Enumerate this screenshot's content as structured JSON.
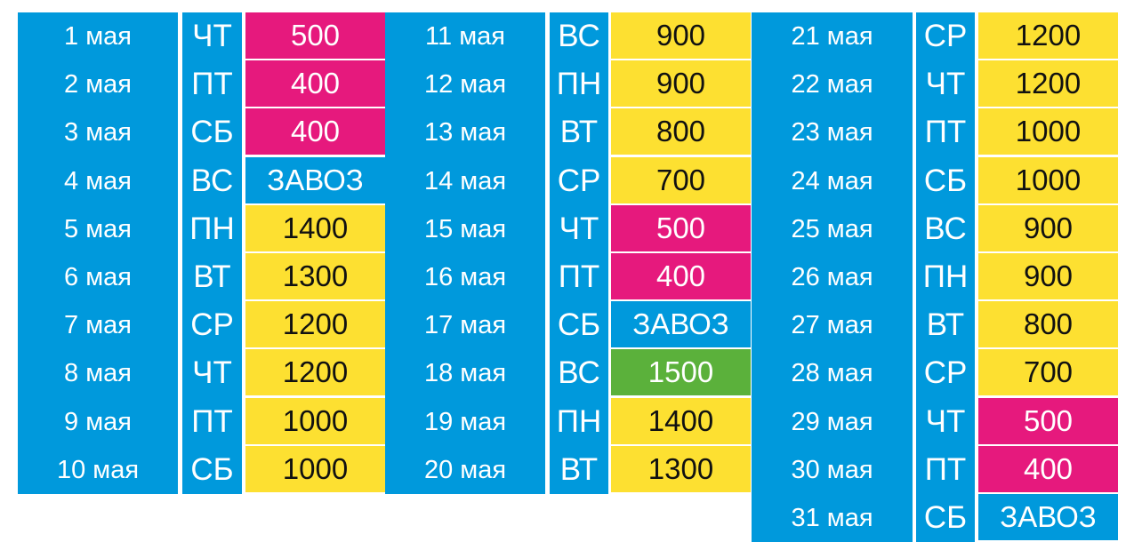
{
  "colors": {
    "blue": "#0099dc",
    "pink": "#e6197d",
    "yellow": "#fde031",
    "green": "#5bb13b"
  },
  "groups": [
    {
      "rows": [
        {
          "date": "1 мая",
          "dow": "ЧТ",
          "value": "500",
          "color": "pink"
        },
        {
          "date": "2 мая",
          "dow": "ПТ",
          "value": "400",
          "color": "pink"
        },
        {
          "date": "3 мая",
          "dow": "СБ",
          "value": "400",
          "color": "pink"
        },
        {
          "date": "4 мая",
          "dow": "ВС",
          "value": "ЗАВОЗ",
          "color": "blue"
        },
        {
          "date": "5 мая",
          "dow": "ПН",
          "value": "1400",
          "color": "yellow"
        },
        {
          "date": "6 мая",
          "dow": "ВТ",
          "value": "1300",
          "color": "yellow"
        },
        {
          "date": "7 мая",
          "dow": "СР",
          "value": "1200",
          "color": "yellow"
        },
        {
          "date": "8 мая",
          "dow": "ЧТ",
          "value": "1200",
          "color": "yellow"
        },
        {
          "date": "9 мая",
          "dow": "ПТ",
          "value": "1000",
          "color": "yellow"
        },
        {
          "date": "10 мая",
          "dow": "СБ",
          "value": "1000",
          "color": "yellow"
        }
      ]
    },
    {
      "rows": [
        {
          "date": "11 мая",
          "dow": "ВС",
          "value": "900",
          "color": "yellow"
        },
        {
          "date": "12 мая",
          "dow": "ПН",
          "value": "900",
          "color": "yellow"
        },
        {
          "date": "13 мая",
          "dow": "ВТ",
          "value": "800",
          "color": "yellow"
        },
        {
          "date": "14 мая",
          "dow": "СР",
          "value": "700",
          "color": "yellow"
        },
        {
          "date": "15 мая",
          "dow": "ЧТ",
          "value": "500",
          "color": "pink"
        },
        {
          "date": "16 мая",
          "dow": "ПТ",
          "value": "400",
          "color": "pink"
        },
        {
          "date": "17 мая",
          "dow": "СБ",
          "value": "ЗАВОЗ",
          "color": "blue"
        },
        {
          "date": "18 мая",
          "dow": "ВС",
          "value": "1500",
          "color": "green"
        },
        {
          "date": "19 мая",
          "dow": "ПН",
          "value": "1400",
          "color": "yellow"
        },
        {
          "date": "20 мая",
          "dow": "ВТ",
          "value": "1300",
          "color": "yellow"
        }
      ]
    },
    {
      "rows": [
        {
          "date": "21 мая",
          "dow": "СР",
          "value": "1200",
          "color": "yellow"
        },
        {
          "date": "22 мая",
          "dow": "ЧТ",
          "value": "1200",
          "color": "yellow"
        },
        {
          "date": "23 мая",
          "dow": "ПТ",
          "value": "1000",
          "color": "yellow"
        },
        {
          "date": "24 мая",
          "dow": "СБ",
          "value": "1000",
          "color": "yellow"
        },
        {
          "date": "25 мая",
          "dow": "ВС",
          "value": "900",
          "color": "yellow"
        },
        {
          "date": "26 мая",
          "dow": "ПН",
          "value": "900",
          "color": "yellow"
        },
        {
          "date": "27 мая",
          "dow": "ВТ",
          "value": "800",
          "color": "yellow"
        },
        {
          "date": "28 мая",
          "dow": "СР",
          "value": "700",
          "color": "yellow"
        },
        {
          "date": "29 мая",
          "dow": "ЧТ",
          "value": "500",
          "color": "pink"
        },
        {
          "date": "30 мая",
          "dow": "ПТ",
          "value": "400",
          "color": "pink"
        },
        {
          "date": "31 мая",
          "dow": "СБ",
          "value": "ЗАВОЗ",
          "color": "blue"
        }
      ]
    }
  ]
}
